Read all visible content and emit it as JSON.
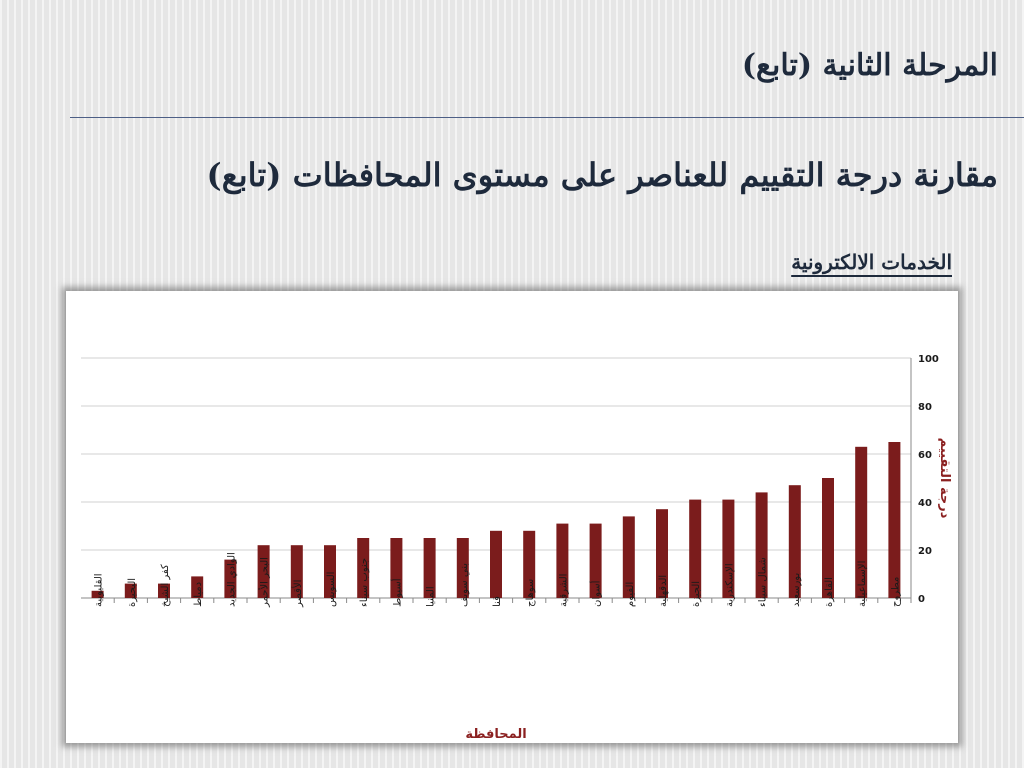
{
  "header": {
    "title": "المرحلة الثانية (تابع)",
    "subtitle": "مقارنة درجة التقييم للعناصر على مستوى المحافظات (تابع)",
    "section_label": "الخدمات الالكترونية"
  },
  "colors": {
    "bar": "#7b1c1c",
    "axis_title": "#8b2020",
    "grid": "#d0d0d0",
    "heading": "#1e2a3c"
  },
  "chart_data": {
    "type": "bar",
    "categories": [
      "القليوبية",
      "البحيرة",
      "كفر الشيخ",
      "دمياط",
      "الوادي الجديد",
      "البحر الأحمر",
      "الأقصر",
      "السويس",
      "جنوب سيناء",
      "أسيوط",
      "المنيا",
      "بني سويف",
      "قنا",
      "سوهاج",
      "الشرقية",
      "أسوان",
      "الفيوم",
      "الدقهلية",
      "الجيزة",
      "الإسكندرية",
      "شمال سيناء",
      "بورسعيد",
      "القاهرة",
      "الإسماعيلية",
      "مطروح"
    ],
    "values": [
      3,
      6,
      6,
      9,
      16,
      22,
      22,
      22,
      25,
      25,
      25,
      25,
      28,
      28,
      31,
      31,
      34,
      37,
      41,
      41,
      44,
      47,
      50,
      63,
      65
    ],
    "xlabel": "المحافظة",
    "ylabel": "درجة التقييم",
    "ylim": [
      0,
      100
    ],
    "yticks": [
      "0",
      "20",
      "40",
      "60",
      "80",
      "100"
    ],
    "grid": true,
    "legend": false
  }
}
